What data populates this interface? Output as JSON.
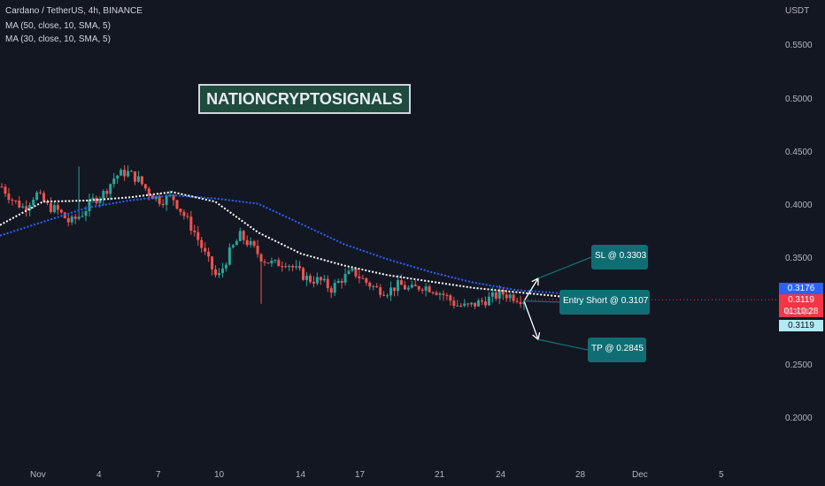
{
  "header": {
    "symbol_line": "Cardano / TetherUS, 4h, BINANCE",
    "ma1": "MA (50, close, 10, SMA, 5)",
    "ma2": "MA (30, close, 10, SMA, 5)"
  },
  "watermark": "NATIONCRYPTOSIGNALS",
  "currency": "USDT",
  "price_badges": {
    "ma_value": "0.3176",
    "last_price": "0.3119",
    "countdown": "01:10:28",
    "bid": "0.3119"
  },
  "annotations": {
    "sl": "SL @ 0.3303",
    "entry": "Entry Short @ 0.3107",
    "tp": "TP @ 0.2845"
  },
  "colors": {
    "background": "#131722",
    "up": "#26a69a",
    "down": "#ef5350",
    "ma50": "#2962ff",
    "ma30": "#ffffff",
    "note_bg": "#0f6e73"
  },
  "chart_data": {
    "type": "candlestick",
    "title": "Cardano / TetherUS, 4h, BINANCE",
    "ylim": [
      0.17,
      0.58
    ],
    "y_ticks": [
      "0.5500",
      "0.5000",
      "0.4500",
      "0.4000",
      "0.3500",
      "0.3000",
      "0.2500",
      "0.2000"
    ],
    "x_ticks": [
      "Nov",
      "4",
      "7",
      "10",
      "14",
      "17",
      "21",
      "24",
      "28",
      "Dec",
      "5"
    ],
    "grid": false,
    "candle_close_path": [
      0.418,
      0.405,
      0.398,
      0.412,
      0.4,
      0.395,
      0.384,
      0.392,
      0.405,
      0.412,
      0.428,
      0.432,
      0.425,
      0.412,
      0.405,
      0.409,
      0.392,
      0.375,
      0.352,
      0.331,
      0.355,
      0.372,
      0.362,
      0.35,
      0.345,
      0.348,
      0.339,
      0.331,
      0.33,
      0.322,
      0.332,
      0.338,
      0.329,
      0.322,
      0.32,
      0.326,
      0.321,
      0.325,
      0.322,
      0.316,
      0.307,
      0.305,
      0.309,
      0.313,
      0.318,
      0.315,
      0.312
    ],
    "series": [
      {
        "name": "MA (50, close, 10, SMA, 5)",
        "values": [
          0.372,
          0.385,
          0.398,
          0.405,
          0.41,
          0.407,
          0.402,
          0.383,
          0.364,
          0.35,
          0.338,
          0.328,
          0.321,
          0.318
        ]
      },
      {
        "name": "MA (30, close, 10, SMA, 5)",
        "values": [
          0.382,
          0.404,
          0.405,
          0.408,
          0.413,
          0.404,
          0.375,
          0.355,
          0.344,
          0.335,
          0.329,
          0.323,
          0.319,
          0.315
        ]
      }
    ],
    "trade_setup": {
      "stop_loss": 0.3303,
      "entry": 0.3107,
      "take_profit": 0.2845
    }
  }
}
